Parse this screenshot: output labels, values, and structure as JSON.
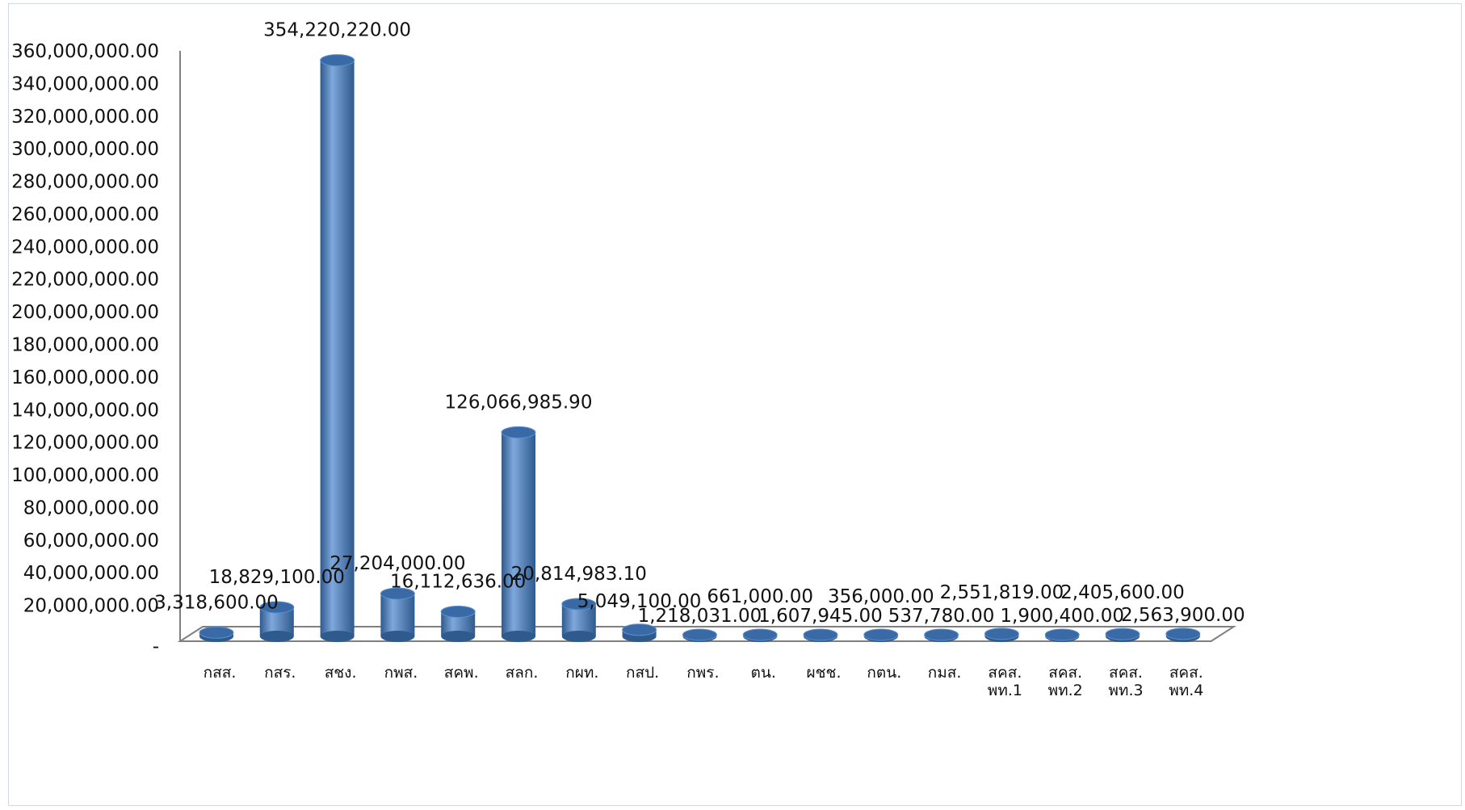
{
  "chart_data": {
    "type": "bar",
    "style": "3d-cylinder",
    "bar_color": "#4f81bd",
    "bar_top_color": "#3a6aa5",
    "bar_dark_color": "#2e5a8e",
    "bar_light_color": "#7fa8dc",
    "axis_color": "#7f7f7f",
    "grid": false,
    "legend": "none",
    "title": "",
    "xlabel": "",
    "ylabel": "",
    "ylim": [
      0,
      360000000
    ],
    "y_tick_step": 20000000,
    "y_tick_labels": [
      "-",
      "20,000,000.00",
      "40,000,000.00",
      "60,000,000.00",
      "80,000,000.00",
      "100,000,000.00",
      "120,000,000.00",
      "140,000,000.00",
      "160,000,000.00",
      "180,000,000.00",
      "200,000,000.00",
      "220,000,000.00",
      "240,000,000.00",
      "260,000,000.00",
      "280,000,000.00",
      "300,000,000.00",
      "320,000,000.00",
      "340,000,000.00",
      "360,000,000.00"
    ],
    "categories": [
      [
        "กสส."
      ],
      [
        "กสร."
      ],
      [
        "สชง."
      ],
      [
        "กพส."
      ],
      [
        "สคพ."
      ],
      [
        "สลก."
      ],
      [
        "กผท."
      ],
      [
        "กสป."
      ],
      [
        "กพร."
      ],
      [
        "ตน."
      ],
      [
        "ผชช."
      ],
      [
        "กตน."
      ],
      [
        "กมส."
      ],
      [
        "สคส.",
        "พท.1"
      ],
      [
        "สคส.",
        "พท.2"
      ],
      [
        "สคส.",
        "พท.3"
      ],
      [
        "สคส.",
        "พท.4"
      ]
    ],
    "values": [
      3318600.0,
      18829100.0,
      354220220.0,
      27204000.0,
      16112636.0,
      126066985.9,
      20814983.1,
      5049100.0,
      1218031.0,
      661000.0,
      1607945.0,
      356000.0,
      537780.0,
      2551819.0,
      1900400.0,
      2405600.0,
      2563900.0
    ],
    "value_labels": [
      "3,318,600.00",
      "18,829,100.00",
      "354,220,220.00",
      "27,204,000.00",
      "16,112,636.00",
      "126,066,985.90",
      "20,814,983.10",
      "5,049,100.00",
      "1,218,031.00",
      "661,000.00",
      "1,607,945.00",
      "356,000.00",
      "537,780.00",
      "2,551,819.00",
      "1,900,400.00",
      "2,405,600.00",
      "2,563,900.00"
    ]
  }
}
